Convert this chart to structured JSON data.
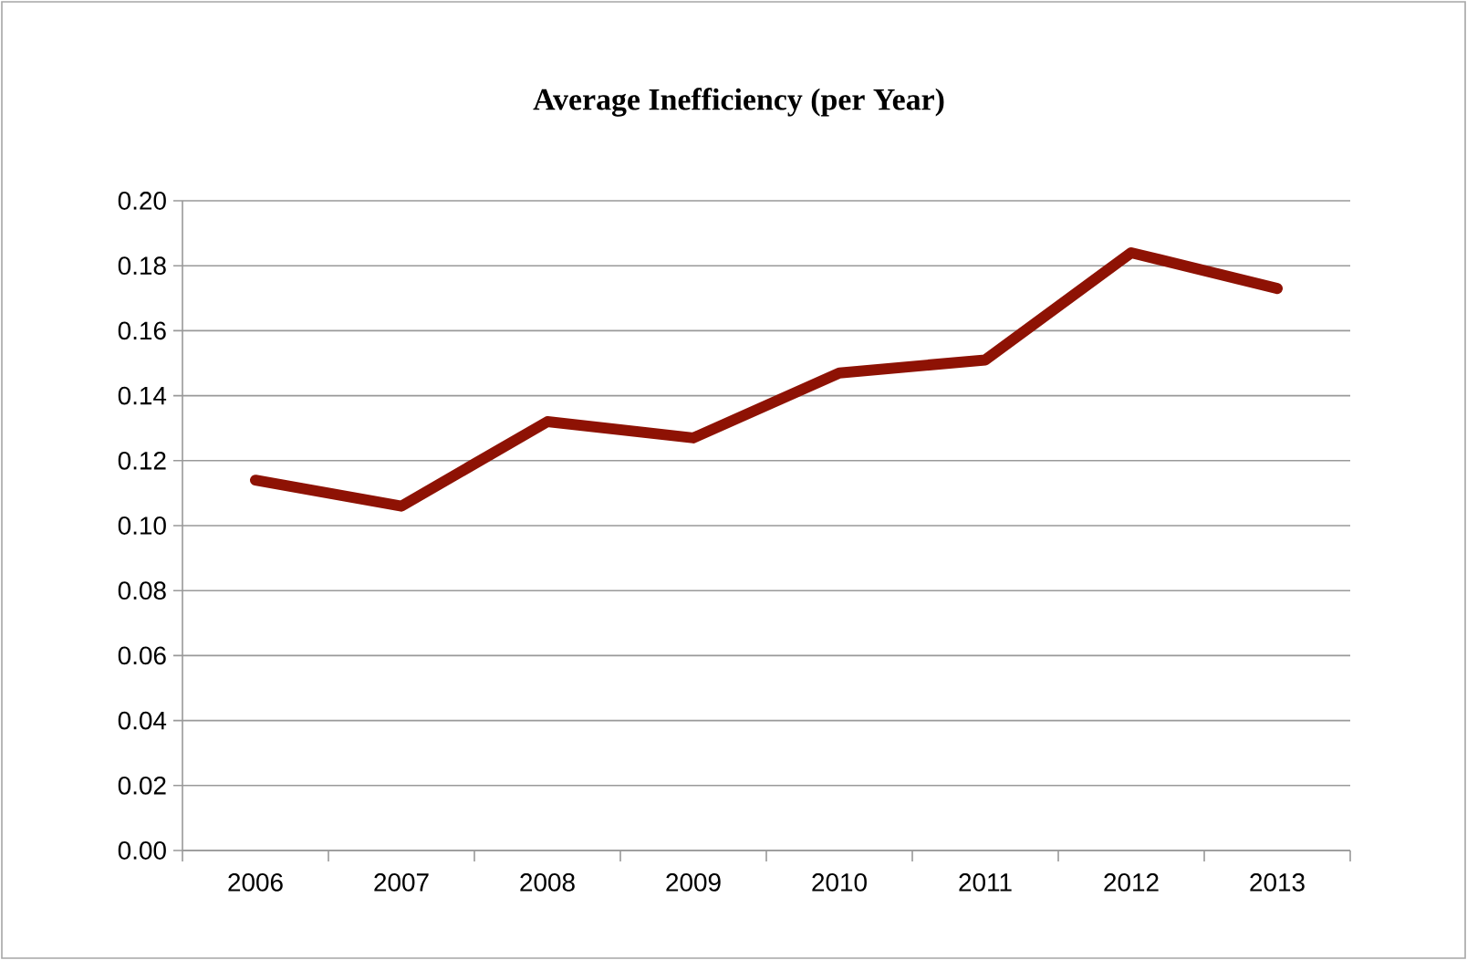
{
  "chart_data": {
    "type": "line",
    "title": "Average Inefficiency (per Year)",
    "categories": [
      "2006",
      "2007",
      "2008",
      "2009",
      "2010",
      "2011",
      "2012",
      "2013"
    ],
    "series": [
      {
        "color": "#8e1204",
        "values": [
          0.114,
          0.106,
          0.132,
          0.127,
          0.147,
          0.151,
          0.184,
          0.173
        ]
      }
    ],
    "ylim": [
      0,
      0.2
    ],
    "yticks": [
      {
        "value": 0,
        "label": "0.00"
      },
      {
        "value": 0.02,
        "label": "0.02"
      },
      {
        "value": 0.04,
        "label": "0.04"
      },
      {
        "value": 0.06,
        "label": "0.06"
      },
      {
        "value": 0.08,
        "label": "0.08"
      },
      {
        "value": 0.1,
        "label": "0.10"
      },
      {
        "value": 0.12,
        "label": "0.12"
      },
      {
        "value": 0.14,
        "label": "0.14"
      },
      {
        "value": 0.16,
        "label": "0.16"
      },
      {
        "value": 0.18,
        "label": "0.18"
      },
      {
        "value": 0.2,
        "label": "0.20"
      }
    ],
    "grid": "y",
    "marker": "none",
    "line_style": "solid"
  }
}
